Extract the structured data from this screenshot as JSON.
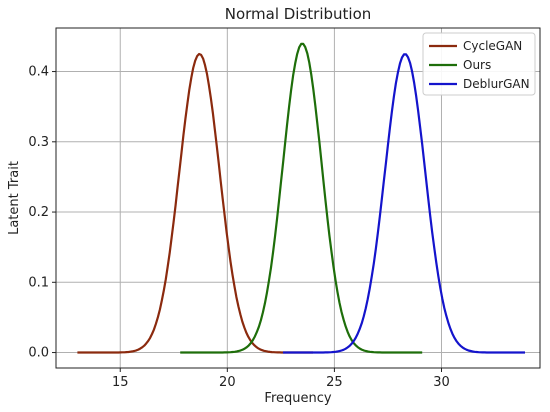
{
  "chart_data": {
    "type": "line",
    "title": "Normal Distribution",
    "xlabel": "Frequency",
    "ylabel": "Latent Trait",
    "xlim": [
      12.0,
      34.6
    ],
    "ylim": [
      -0.022,
      0.462
    ],
    "xticks": [
      15,
      20,
      25,
      30
    ],
    "yticks": [
      0.0,
      0.1,
      0.2,
      0.3,
      0.4
    ],
    "xtick_labels": [
      "15",
      "20",
      "25",
      "30"
    ],
    "ytick_labels": [
      "0.0",
      "0.1",
      "0.2",
      "0.3",
      "0.4"
    ],
    "grid": true,
    "legend_position": "top-right",
    "series": [
      {
        "name": "CycleGAN",
        "color": "#8b2a0e",
        "mean": 18.7,
        "peak": 0.425,
        "std": 0.94,
        "x_range": [
          13.0,
          24.0
        ]
      },
      {
        "name": "Ours",
        "color": "#1e6e0a",
        "mean": 23.5,
        "peak": 0.44,
        "std": 0.91,
        "x_range": [
          17.8,
          29.1
        ]
      },
      {
        "name": "DeblurGAN",
        "color": "#1414cc",
        "mean": 28.3,
        "peak": 0.425,
        "std": 0.94,
        "x_range": [
          22.6,
          33.9
        ]
      }
    ]
  }
}
